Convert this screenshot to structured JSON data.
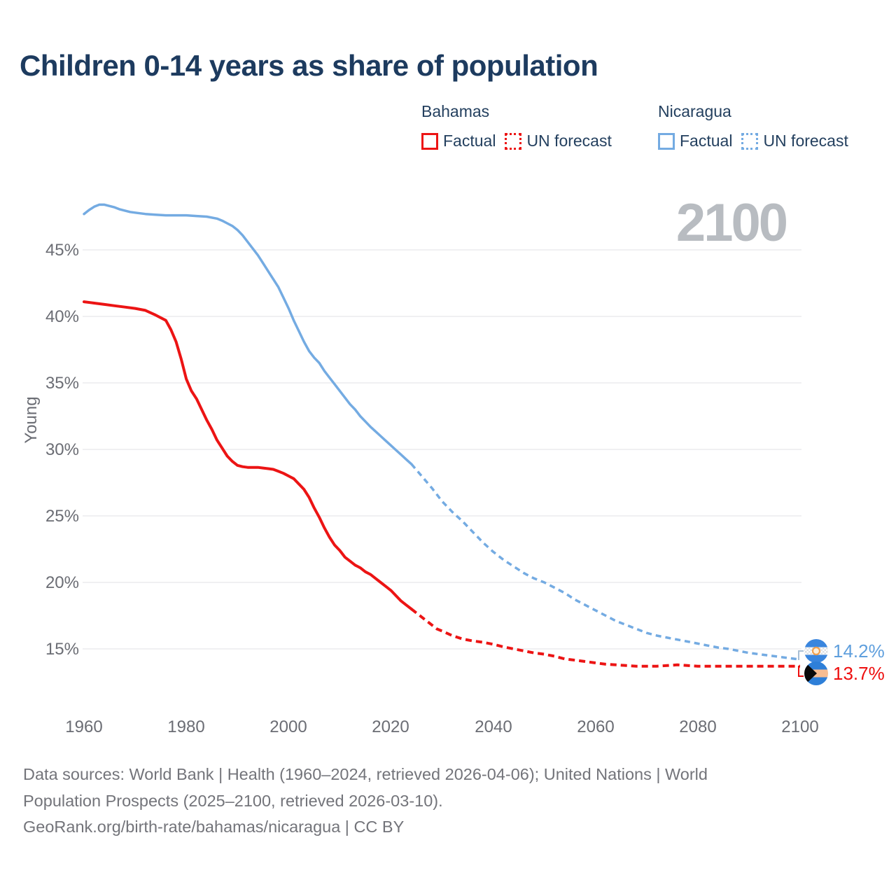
{
  "title": "Children 0-14 years as share of population",
  "colors": {
    "title_navy": "#1d3b5f",
    "bahamas_red": "#ec1414",
    "nicaragua_blue": "#74abe2",
    "end_label_blue": "#5f9fdd",
    "end_label_red": "#ee0e0e",
    "axis_gray": "#6b6d74",
    "gridline_gray": "#e7e7e9",
    "watermark_gray": "#b8bcc1",
    "footer_gray": "#73747a",
    "flag_blue": "#2e7fd8",
    "flag_peach": "#f8bd92",
    "flag_black": "#0a0a0a"
  },
  "legend": {
    "groups": [
      {
        "country": "Bahamas",
        "factual_label": "Factual",
        "forecast_label": "UN forecast"
      },
      {
        "country": "Nicaragua",
        "factual_label": "Factual",
        "forecast_label": "UN forecast"
      }
    ]
  },
  "watermark": "2100",
  "y_axis": {
    "title": "Young",
    "ticks": [
      "45%",
      "40%",
      "35%",
      "30%",
      "25%",
      "20%",
      "15%"
    ]
  },
  "x_axis": {
    "ticks": [
      "1960",
      "1980",
      "2000",
      "2020",
      "2040",
      "2060",
      "2080",
      "2100"
    ]
  },
  "end_labels": [
    {
      "series": "Nicaragua",
      "flag": "nicaragua-flag",
      "value_label": "14.2%"
    },
    {
      "series": "Bahamas",
      "flag": "bahamas-flag",
      "value_label": "13.7%"
    }
  ],
  "footer": {
    "line1": "Data sources: World Bank | Health (1960–2024, retrieved 2026-04-06); United Nations | World",
    "line2": "Population Prospects (2025–2100, retrieved 2026-03-10).",
    "line3": "GeoRank.org/birth-rate/bahamas/nicaragua | CC BY"
  },
  "chart_data": {
    "type": "line",
    "title": "Children 0-14 years as share of population",
    "xlabel": "",
    "ylabel": "Young",
    "x_range": [
      1960,
      2100
    ],
    "ylim": [
      13,
      49
    ],
    "y_ticks_pct": [
      15,
      20,
      25,
      30,
      35,
      40,
      45
    ],
    "x_ticks_years": [
      1960,
      1980,
      2000,
      2020,
      2040,
      2060,
      2080,
      2100
    ],
    "grid": true,
    "legend_position": "top",
    "end_values": {
      "nicaragua_2100_pct": 14.2,
      "bahamas_2100_pct": 13.7
    },
    "series": [
      {
        "name": "Bahamas Factual",
        "style": "solid",
        "color": "#ec1414",
        "width": 4,
        "points": [
          [
            1960,
            41.1
          ],
          [
            1962,
            41.0
          ],
          [
            1964,
            40.9
          ],
          [
            1966,
            40.8
          ],
          [
            1968,
            40.7
          ],
          [
            1970,
            40.6
          ],
          [
            1972,
            40.45
          ],
          [
            1974,
            40.1
          ],
          [
            1976,
            39.7
          ],
          [
            1977,
            39.0
          ],
          [
            1978,
            38.1
          ],
          [
            1979,
            36.8
          ],
          [
            1980,
            35.3
          ],
          [
            1981,
            34.4
          ],
          [
            1982,
            33.8
          ],
          [
            1983,
            33.0
          ],
          [
            1984,
            32.2
          ],
          [
            1985,
            31.5
          ],
          [
            1986,
            30.7
          ],
          [
            1987,
            30.1
          ],
          [
            1988,
            29.5
          ],
          [
            1989,
            29.1
          ],
          [
            1990,
            28.8
          ],
          [
            1991,
            28.7
          ],
          [
            1992,
            28.65
          ],
          [
            1994,
            28.65
          ],
          [
            1995,
            28.6
          ],
          [
            1996,
            28.55
          ],
          [
            1997,
            28.5
          ],
          [
            1998,
            28.35
          ],
          [
            1999,
            28.2
          ],
          [
            2000,
            28.0
          ],
          [
            2001,
            27.8
          ],
          [
            2002,
            27.4
          ],
          [
            2003,
            27.0
          ],
          [
            2004,
            26.4
          ],
          [
            2005,
            25.6
          ],
          [
            2006,
            24.9
          ],
          [
            2007,
            24.1
          ],
          [
            2008,
            23.4
          ],
          [
            2009,
            22.8
          ],
          [
            2010,
            22.4
          ],
          [
            2011,
            21.9
          ],
          [
            2012,
            21.6
          ],
          [
            2013,
            21.3
          ],
          [
            2014,
            21.1
          ],
          [
            2015,
            20.8
          ],
          [
            2016,
            20.6
          ],
          [
            2017,
            20.3
          ],
          [
            2018,
            20.0
          ],
          [
            2019,
            19.7
          ],
          [
            2020,
            19.4
          ],
          [
            2021,
            19.0
          ],
          [
            2022,
            18.6
          ],
          [
            2023,
            18.3
          ],
          [
            2024,
            18.0
          ]
        ]
      },
      {
        "name": "Bahamas UN forecast",
        "style": "dashed",
        "color": "#ec1414",
        "width": 4,
        "points": [
          [
            2024,
            18.0
          ],
          [
            2025,
            17.7
          ],
          [
            2026,
            17.4
          ],
          [
            2027,
            17.1
          ],
          [
            2028,
            16.8
          ],
          [
            2029,
            16.5
          ],
          [
            2030,
            16.35
          ],
          [
            2032,
            16.0
          ],
          [
            2034,
            15.75
          ],
          [
            2036,
            15.6
          ],
          [
            2038,
            15.5
          ],
          [
            2040,
            15.35
          ],
          [
            2042,
            15.15
          ],
          [
            2044,
            15.0
          ],
          [
            2046,
            14.85
          ],
          [
            2048,
            14.7
          ],
          [
            2050,
            14.6
          ],
          [
            2052,
            14.45
          ],
          [
            2054,
            14.25
          ],
          [
            2056,
            14.15
          ],
          [
            2058,
            14.05
          ],
          [
            2060,
            13.95
          ],
          [
            2062,
            13.85
          ],
          [
            2064,
            13.8
          ],
          [
            2066,
            13.75
          ],
          [
            2068,
            13.7
          ],
          [
            2070,
            13.7
          ],
          [
            2072,
            13.7
          ],
          [
            2074,
            13.75
          ],
          [
            2076,
            13.8
          ],
          [
            2078,
            13.75
          ],
          [
            2080,
            13.7
          ],
          [
            2084,
            13.7
          ],
          [
            2088,
            13.7
          ],
          [
            2092,
            13.7
          ],
          [
            2096,
            13.7
          ],
          [
            2100,
            13.7
          ]
        ]
      },
      {
        "name": "Nicaragua Factual",
        "style": "solid",
        "color": "#74abe2",
        "width": 3.5,
        "points": [
          [
            1960,
            47.7
          ],
          [
            1961,
            48.0
          ],
          [
            1962,
            48.25
          ],
          [
            1963,
            48.4
          ],
          [
            1964,
            48.4
          ],
          [
            1965,
            48.3
          ],
          [
            1966,
            48.2
          ],
          [
            1967,
            48.05
          ],
          [
            1968,
            47.95
          ],
          [
            1969,
            47.85
          ],
          [
            1970,
            47.8
          ],
          [
            1972,
            47.7
          ],
          [
            1974,
            47.65
          ],
          [
            1976,
            47.6
          ],
          [
            1978,
            47.6
          ],
          [
            1980,
            47.6
          ],
          [
            1982,
            47.55
          ],
          [
            1984,
            47.5
          ],
          [
            1986,
            47.35
          ],
          [
            1987,
            47.2
          ],
          [
            1988,
            47.0
          ],
          [
            1989,
            46.8
          ],
          [
            1990,
            46.5
          ],
          [
            1991,
            46.1
          ],
          [
            1992,
            45.6
          ],
          [
            1993,
            45.1
          ],
          [
            1994,
            44.6
          ],
          [
            1995,
            44.0
          ],
          [
            1996,
            43.4
          ],
          [
            1997,
            42.8
          ],
          [
            1998,
            42.2
          ],
          [
            1999,
            41.4
          ],
          [
            2000,
            40.6
          ],
          [
            2001,
            39.7
          ],
          [
            2002,
            38.9
          ],
          [
            2003,
            38.1
          ],
          [
            2004,
            37.4
          ],
          [
            2005,
            36.9
          ],
          [
            2006,
            36.5
          ],
          [
            2007,
            35.9
          ],
          [
            2008,
            35.4
          ],
          [
            2009,
            34.9
          ],
          [
            2010,
            34.4
          ],
          [
            2011,
            33.9
          ],
          [
            2012,
            33.4
          ],
          [
            2013,
            33.0
          ],
          [
            2014,
            32.5
          ],
          [
            2015,
            32.1
          ],
          [
            2016,
            31.7
          ],
          [
            2017,
            31.35
          ],
          [
            2018,
            31.0
          ],
          [
            2019,
            30.65
          ],
          [
            2020,
            30.3
          ],
          [
            2021,
            29.95
          ],
          [
            2022,
            29.6
          ],
          [
            2023,
            29.25
          ],
          [
            2024,
            28.9
          ]
        ]
      },
      {
        "name": "Nicaragua UN forecast",
        "style": "dashed",
        "color": "#74abe2",
        "width": 3.5,
        "points": [
          [
            2024,
            28.9
          ],
          [
            2026,
            28.0
          ],
          [
            2028,
            27.1
          ],
          [
            2030,
            26.1
          ],
          [
            2032,
            25.3
          ],
          [
            2034,
            24.6
          ],
          [
            2036,
            23.8
          ],
          [
            2038,
            23.0
          ],
          [
            2040,
            22.3
          ],
          [
            2042,
            21.7
          ],
          [
            2044,
            21.2
          ],
          [
            2046,
            20.7
          ],
          [
            2048,
            20.3
          ],
          [
            2050,
            20.0
          ],
          [
            2052,
            19.6
          ],
          [
            2054,
            19.2
          ],
          [
            2056,
            18.7
          ],
          [
            2058,
            18.3
          ],
          [
            2060,
            17.9
          ],
          [
            2062,
            17.5
          ],
          [
            2064,
            17.1
          ],
          [
            2066,
            16.8
          ],
          [
            2068,
            16.5
          ],
          [
            2070,
            16.2
          ],
          [
            2072,
            16.0
          ],
          [
            2074,
            15.85
          ],
          [
            2076,
            15.7
          ],
          [
            2078,
            15.55
          ],
          [
            2080,
            15.4
          ],
          [
            2082,
            15.25
          ],
          [
            2084,
            15.1
          ],
          [
            2086,
            15.0
          ],
          [
            2088,
            14.85
          ],
          [
            2090,
            14.7
          ],
          [
            2092,
            14.6
          ],
          [
            2094,
            14.5
          ],
          [
            2096,
            14.4
          ],
          [
            2098,
            14.3
          ],
          [
            2100,
            14.2
          ]
        ]
      }
    ]
  }
}
